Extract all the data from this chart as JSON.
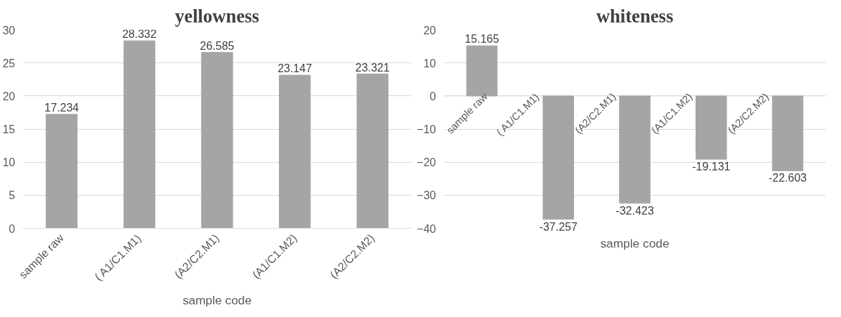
{
  "chart_data": [
    {
      "type": "bar",
      "title": "yellowness",
      "xlabel": "sample code",
      "categories": [
        "sample raw",
        "( A1/C1.M1)",
        "(A2/C2.M1)",
        "(A1/C1.M2)",
        "(A2/C2.M2)"
      ],
      "values": [
        17.234,
        28.332,
        26.585,
        23.147,
        23.321
      ],
      "color": "#a5a5a5",
      "ylim": [
        0,
        30
      ],
      "yticks": [
        0,
        5,
        10,
        15,
        20,
        25,
        30
      ],
      "grid": "y",
      "data_labels": true
    },
    {
      "type": "bar",
      "title": "whiteness",
      "xlabel": "sample code",
      "categories": [
        "sample raw",
        "( A1/C1.M1)",
        "(A2/C2.M1)",
        "(A1/C1.M2)",
        "(A2/C2.M2)"
      ],
      "values": [
        15.165,
        -37.257,
        -32.423,
        -19.131,
        -22.603
      ],
      "color": "#a5a5a5",
      "ylim": [
        -40,
        20
      ],
      "yticks": [
        -40,
        -30,
        -20,
        -10,
        0,
        10,
        20
      ],
      "grid": "y",
      "data_labels": true
    }
  ]
}
